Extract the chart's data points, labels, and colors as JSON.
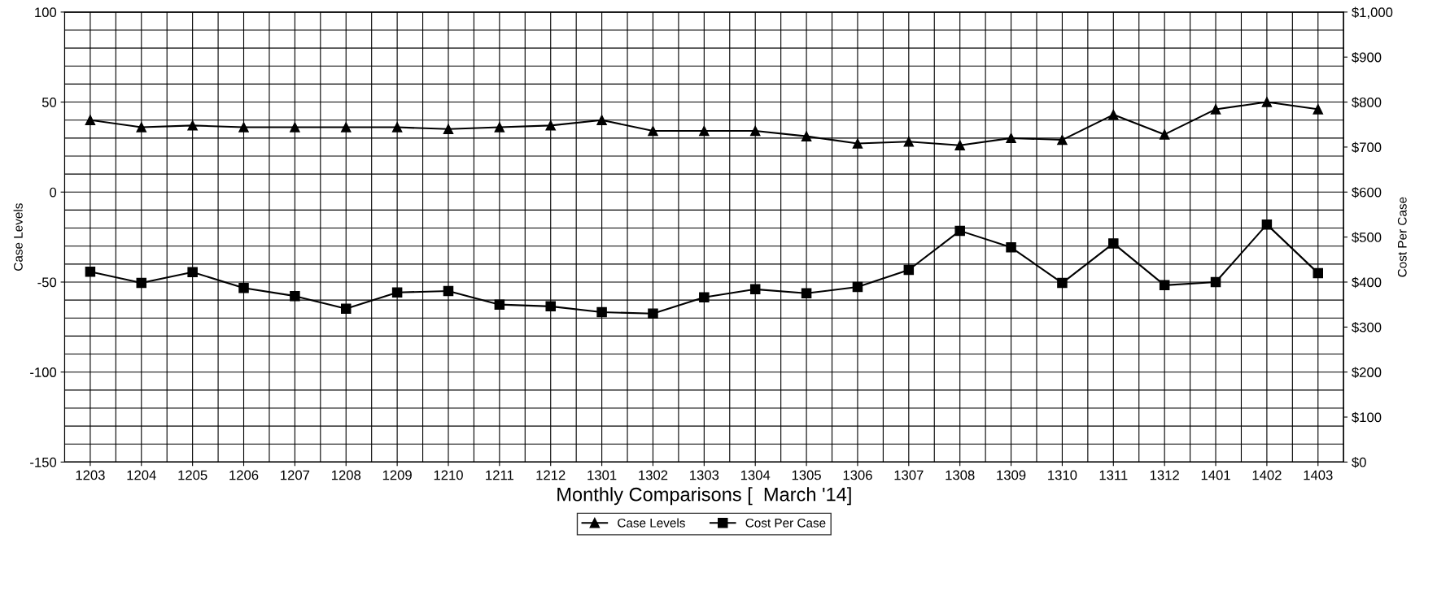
{
  "chart_data": {
    "type": "line",
    "xlabel": "Monthly Comparisons [  March '14]",
    "ylabel": "Case Levels",
    "y2label": "Cost Per Case",
    "categories": [
      "1203",
      "1204",
      "1205",
      "1206",
      "1207",
      "1208",
      "1209",
      "1210",
      "1211",
      "1212",
      "1301",
      "1302",
      "1303",
      "1304",
      "1305",
      "1306",
      "1307",
      "1308",
      "1309",
      "1310",
      "1311",
      "1312",
      "1401",
      "1402",
      "1403"
    ],
    "series": [
      {
        "name": "Case Levels",
        "color": "#000000",
        "marker": "triangle",
        "values": [
          40,
          36,
          37,
          36,
          36,
          36,
          36,
          35,
          36,
          37,
          40,
          34,
          34,
          34,
          31,
          27,
          28,
          26,
          30,
          29,
          43,
          32,
          46,
          50,
          46
        ]
      },
      {
        "name": "Cost Per Case",
        "color": "#000000",
        "marker": "square",
        "axis": "y2",
        "values": [
          423,
          398,
          422,
          387,
          369,
          341,
          377,
          380,
          350,
          346,
          333,
          330,
          366,
          384,
          375,
          389,
          427,
          514,
          477,
          398,
          486,
          393,
          400,
          528,
          420
        ]
      }
    ],
    "ylim": [
      -150,
      100
    ],
    "yticks": [
      -150,
      -100,
      -50,
      0,
      50,
      100
    ],
    "y2lim": [
      0,
      1000
    ],
    "y2ticks": [
      {
        "value": 0,
        "label": "$0"
      },
      {
        "value": 100,
        "label": "$100"
      },
      {
        "value": 200,
        "label": "$200"
      },
      {
        "value": 300,
        "label": "$300"
      },
      {
        "value": 400,
        "label": "$400"
      },
      {
        "value": 500,
        "label": "$500"
      },
      {
        "value": 600,
        "label": "$600"
      },
      {
        "value": 700,
        "label": "$700"
      },
      {
        "value": 800,
        "label": "$800"
      },
      {
        "value": 900,
        "label": "$900"
      },
      {
        "value": 1000,
        "label": "$1,000"
      }
    ],
    "grid": true,
    "legend": "bottom",
    "line_style": "solid"
  }
}
